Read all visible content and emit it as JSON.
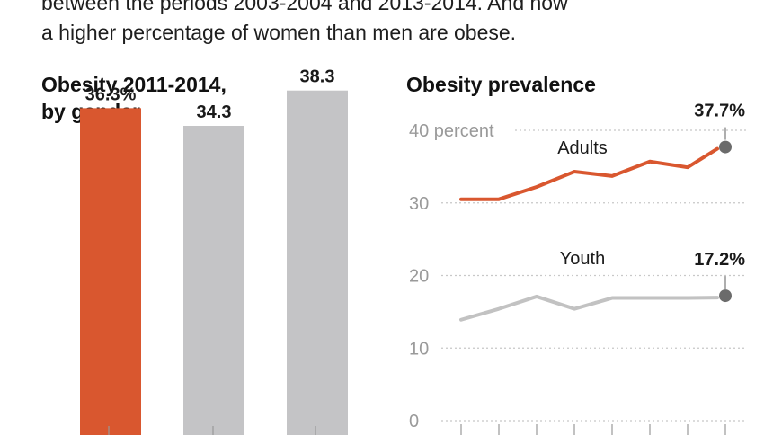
{
  "intro": {
    "line1": "between the periods 2003-2004 and 2013-2014. And now",
    "line2": "a higher percentage of women than men are obese."
  },
  "colors": {
    "accent": "#d9572f",
    "bar_gray": "#c4c4c6",
    "youth_line": "#c2c2c2",
    "point": "#6b6b6b",
    "tick_text": "#9a9a9a",
    "grid": "#c8c8c8"
  },
  "chart_data": [
    {
      "type": "bar",
      "title_line1": "Obesity 2011-2014,",
      "title_line2": "by gender",
      "categories": [
        "",
        "",
        ""
      ],
      "values": [
        36.3,
        34.3,
        38.3
      ],
      "value_labels": [
        "36.3%",
        "34.3",
        "38.3"
      ],
      "ylim": [
        0,
        40
      ]
    },
    {
      "type": "line",
      "title": "Obesity prevalence",
      "ylim": [
        0,
        40
      ],
      "yticks": [
        {
          "value": 40,
          "label": "40 percent"
        },
        {
          "value": 30,
          "label": "30"
        },
        {
          "value": 20,
          "label": "20"
        },
        {
          "value": 10,
          "label": "10"
        },
        {
          "value": 0,
          "label": "0"
        }
      ],
      "x": [
        1,
        2,
        3,
        4,
        5,
        6,
        7,
        8
      ],
      "series": [
        {
          "name": "Adults",
          "values": [
            30.5,
            30.5,
            32.2,
            34.3,
            33.7,
            35.7,
            34.9,
            37.7
          ],
          "end_label": "37.7%"
        },
        {
          "name": "Youth",
          "values": [
            13.9,
            15.4,
            17.1,
            15.4,
            16.9,
            16.9,
            16.9,
            17.2
          ],
          "end_label": "17.2%"
        }
      ]
    }
  ]
}
